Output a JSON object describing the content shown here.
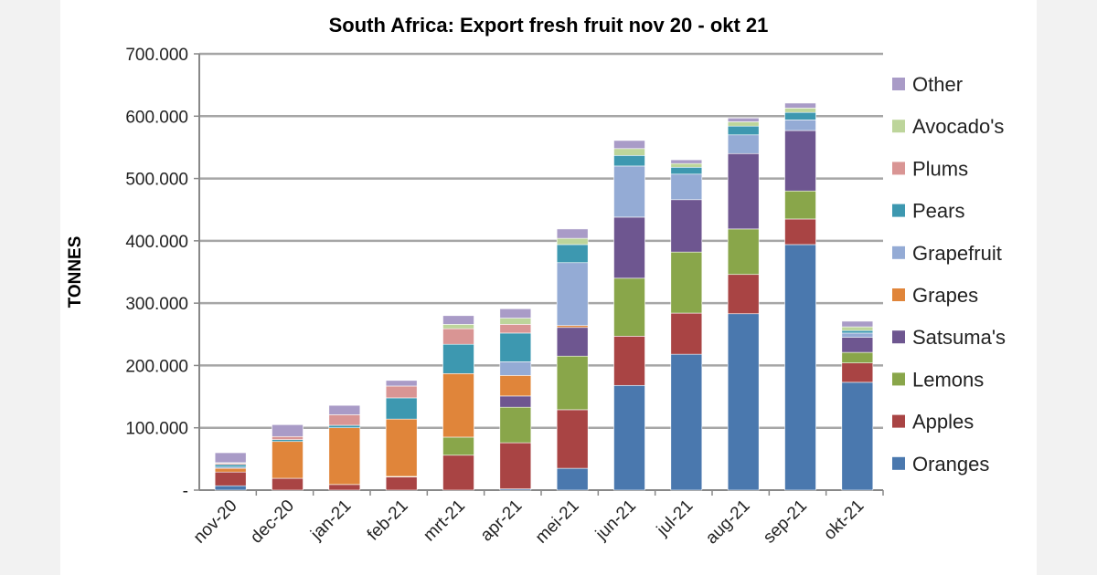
{
  "chart_data": {
    "type": "bar",
    "stacked": true,
    "title": "South Africa: Export fresh fruit nov 20 - okt 21",
    "xlabel": "",
    "ylabel": "TONNES",
    "ylim": [
      0,
      700000
    ],
    "yticks": [
      0,
      100000,
      200000,
      300000,
      400000,
      500000,
      600000,
      700000
    ],
    "ytick_labels": [
      "-",
      "100.000",
      "200.000",
      "300.000",
      "400.000",
      "500.000",
      "600.000",
      "700.000"
    ],
    "grid": true,
    "legend_position": "right",
    "categories": [
      "nov-20",
      "dec-20",
      "jan-21",
      "feb-21",
      "mrt-21",
      "apr-21",
      "mei-21",
      "jun-21",
      "jul-21",
      "aug-21",
      "sep-21",
      "okt-21"
    ],
    "series": [
      {
        "name": "Oranges",
        "color": "#4a78ae",
        "values": [
          7000,
          0,
          0,
          0,
          0,
          2000,
          35000,
          168000,
          218000,
          283000,
          394000,
          173000
        ]
      },
      {
        "name": "Apples",
        "color": "#a94444",
        "values": [
          22000,
          19000,
          9000,
          21000,
          56000,
          74000,
          94000,
          79000,
          66000,
          63000,
          41000,
          31000
        ]
      },
      {
        "name": "Lemons",
        "color": "#89a64a",
        "values": [
          0,
          0,
          0,
          1000,
          29000,
          57000,
          86000,
          93000,
          98000,
          73000,
          45000,
          17000
        ]
      },
      {
        "name": "Satsuma's",
        "color": "#6e5690",
        "values": [
          0,
          0,
          0,
          0,
          0,
          18000,
          46000,
          98000,
          84000,
          121000,
          97000,
          24000
        ]
      },
      {
        "name": "Grapes",
        "color": "#e0853a",
        "values": [
          6000,
          59000,
          91000,
          92000,
          102000,
          33000,
          3000,
          0,
          0,
          0,
          0,
          0
        ]
      },
      {
        "name": "Grapefruit",
        "color": "#94abd5",
        "values": [
          2000,
          0,
          0,
          0,
          0,
          22000,
          101000,
          82000,
          41000,
          30000,
          17000,
          7000
        ]
      },
      {
        "name": "Pears",
        "color": "#3d98b0",
        "values": [
          4000,
          3000,
          4000,
          34000,
          47000,
          46000,
          29000,
          17000,
          11000,
          14000,
          12000,
          4000
        ]
      },
      {
        "name": "Plums",
        "color": "#d99594",
        "values": [
          2000,
          5000,
          17000,
          19000,
          25000,
          14000,
          0,
          0,
          0,
          0,
          0,
          0
        ]
      },
      {
        "name": "Avocado's",
        "color": "#bdd59b",
        "values": [
          1000,
          0,
          0,
          0,
          7000,
          10000,
          10000,
          11000,
          6000,
          7000,
          7000,
          6000
        ]
      },
      {
        "name": "Other",
        "color": "#a99bc7",
        "values": [
          16000,
          19000,
          15000,
          9000,
          14000,
          15000,
          15000,
          13000,
          6000,
          6000,
          8000,
          9000
        ]
      }
    ]
  }
}
